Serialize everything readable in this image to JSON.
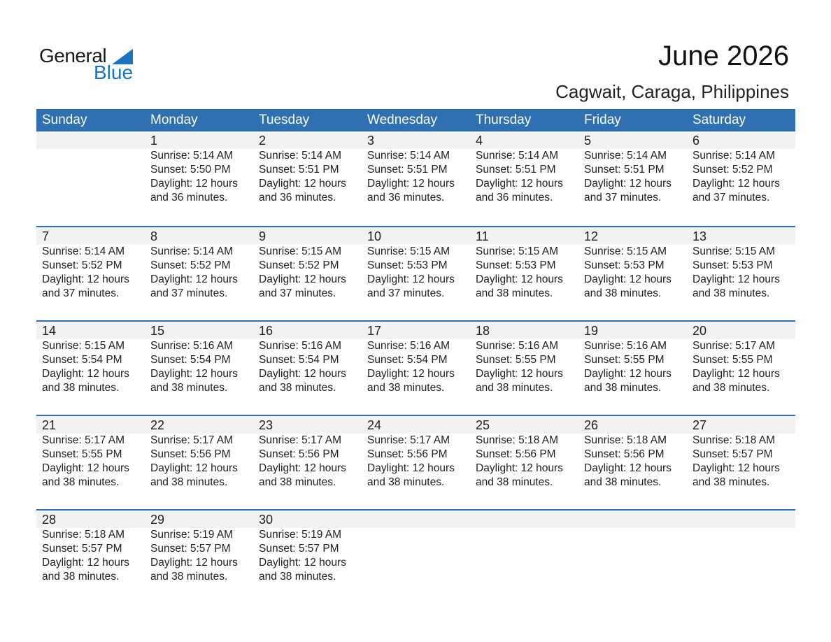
{
  "logo": {
    "word1": "General",
    "word2": "Blue",
    "brand_color": "#1a73c0"
  },
  "header": {
    "title": "June 2026",
    "location": "Cagwait, Caraga, Philippines"
  },
  "weekdays": [
    "Sunday",
    "Monday",
    "Tuesday",
    "Wednesday",
    "Thursday",
    "Friday",
    "Saturday"
  ],
  "accent_color": "#2f70b3",
  "weeks": [
    [
      null,
      {
        "day": "1",
        "sunrise": "Sunrise: 5:14 AM",
        "sunset": "Sunset: 5:50 PM",
        "daylight1": "Daylight: 12 hours",
        "daylight2": "and 36 minutes."
      },
      {
        "day": "2",
        "sunrise": "Sunrise: 5:14 AM",
        "sunset": "Sunset: 5:51 PM",
        "daylight1": "Daylight: 12 hours",
        "daylight2": "and 36 minutes."
      },
      {
        "day": "3",
        "sunrise": "Sunrise: 5:14 AM",
        "sunset": "Sunset: 5:51 PM",
        "daylight1": "Daylight: 12 hours",
        "daylight2": "and 36 minutes."
      },
      {
        "day": "4",
        "sunrise": "Sunrise: 5:14 AM",
        "sunset": "Sunset: 5:51 PM",
        "daylight1": "Daylight: 12 hours",
        "daylight2": "and 36 minutes."
      },
      {
        "day": "5",
        "sunrise": "Sunrise: 5:14 AM",
        "sunset": "Sunset: 5:51 PM",
        "daylight1": "Daylight: 12 hours",
        "daylight2": "and 37 minutes."
      },
      {
        "day": "6",
        "sunrise": "Sunrise: 5:14 AM",
        "sunset": "Sunset: 5:52 PM",
        "daylight1": "Daylight: 12 hours",
        "daylight2": "and 37 minutes."
      }
    ],
    [
      {
        "day": "7",
        "sunrise": "Sunrise: 5:14 AM",
        "sunset": "Sunset: 5:52 PM",
        "daylight1": "Daylight: 12 hours",
        "daylight2": "and 37 minutes."
      },
      {
        "day": "8",
        "sunrise": "Sunrise: 5:14 AM",
        "sunset": "Sunset: 5:52 PM",
        "daylight1": "Daylight: 12 hours",
        "daylight2": "and 37 minutes."
      },
      {
        "day": "9",
        "sunrise": "Sunrise: 5:15 AM",
        "sunset": "Sunset: 5:52 PM",
        "daylight1": "Daylight: 12 hours",
        "daylight2": "and 37 minutes."
      },
      {
        "day": "10",
        "sunrise": "Sunrise: 5:15 AM",
        "sunset": "Sunset: 5:53 PM",
        "daylight1": "Daylight: 12 hours",
        "daylight2": "and 37 minutes."
      },
      {
        "day": "11",
        "sunrise": "Sunrise: 5:15 AM",
        "sunset": "Sunset: 5:53 PM",
        "daylight1": "Daylight: 12 hours",
        "daylight2": "and 38 minutes."
      },
      {
        "day": "12",
        "sunrise": "Sunrise: 5:15 AM",
        "sunset": "Sunset: 5:53 PM",
        "daylight1": "Daylight: 12 hours",
        "daylight2": "and 38 minutes."
      },
      {
        "day": "13",
        "sunrise": "Sunrise: 5:15 AM",
        "sunset": "Sunset: 5:53 PM",
        "daylight1": "Daylight: 12 hours",
        "daylight2": "and 38 minutes."
      }
    ],
    [
      {
        "day": "14",
        "sunrise": "Sunrise: 5:15 AM",
        "sunset": "Sunset: 5:54 PM",
        "daylight1": "Daylight: 12 hours",
        "daylight2": "and 38 minutes."
      },
      {
        "day": "15",
        "sunrise": "Sunrise: 5:16 AM",
        "sunset": "Sunset: 5:54 PM",
        "daylight1": "Daylight: 12 hours",
        "daylight2": "and 38 minutes."
      },
      {
        "day": "16",
        "sunrise": "Sunrise: 5:16 AM",
        "sunset": "Sunset: 5:54 PM",
        "daylight1": "Daylight: 12 hours",
        "daylight2": "and 38 minutes."
      },
      {
        "day": "17",
        "sunrise": "Sunrise: 5:16 AM",
        "sunset": "Sunset: 5:54 PM",
        "daylight1": "Daylight: 12 hours",
        "daylight2": "and 38 minutes."
      },
      {
        "day": "18",
        "sunrise": "Sunrise: 5:16 AM",
        "sunset": "Sunset: 5:55 PM",
        "daylight1": "Daylight: 12 hours",
        "daylight2": "and 38 minutes."
      },
      {
        "day": "19",
        "sunrise": "Sunrise: 5:16 AM",
        "sunset": "Sunset: 5:55 PM",
        "daylight1": "Daylight: 12 hours",
        "daylight2": "and 38 minutes."
      },
      {
        "day": "20",
        "sunrise": "Sunrise: 5:17 AM",
        "sunset": "Sunset: 5:55 PM",
        "daylight1": "Daylight: 12 hours",
        "daylight2": "and 38 minutes."
      }
    ],
    [
      {
        "day": "21",
        "sunrise": "Sunrise: 5:17 AM",
        "sunset": "Sunset: 5:55 PM",
        "daylight1": "Daylight: 12 hours",
        "daylight2": "and 38 minutes."
      },
      {
        "day": "22",
        "sunrise": "Sunrise: 5:17 AM",
        "sunset": "Sunset: 5:56 PM",
        "daylight1": "Daylight: 12 hours",
        "daylight2": "and 38 minutes."
      },
      {
        "day": "23",
        "sunrise": "Sunrise: 5:17 AM",
        "sunset": "Sunset: 5:56 PM",
        "daylight1": "Daylight: 12 hours",
        "daylight2": "and 38 minutes."
      },
      {
        "day": "24",
        "sunrise": "Sunrise: 5:17 AM",
        "sunset": "Sunset: 5:56 PM",
        "daylight1": "Daylight: 12 hours",
        "daylight2": "and 38 minutes."
      },
      {
        "day": "25",
        "sunrise": "Sunrise: 5:18 AM",
        "sunset": "Sunset: 5:56 PM",
        "daylight1": "Daylight: 12 hours",
        "daylight2": "and 38 minutes."
      },
      {
        "day": "26",
        "sunrise": "Sunrise: 5:18 AM",
        "sunset": "Sunset: 5:56 PM",
        "daylight1": "Daylight: 12 hours",
        "daylight2": "and 38 minutes."
      },
      {
        "day": "27",
        "sunrise": "Sunrise: 5:18 AM",
        "sunset": "Sunset: 5:57 PM",
        "daylight1": "Daylight: 12 hours",
        "daylight2": "and 38 minutes."
      }
    ],
    [
      {
        "day": "28",
        "sunrise": "Sunrise: 5:18 AM",
        "sunset": "Sunset: 5:57 PM",
        "daylight1": "Daylight: 12 hours",
        "daylight2": "and 38 minutes."
      },
      {
        "day": "29",
        "sunrise": "Sunrise: 5:19 AM",
        "sunset": "Sunset: 5:57 PM",
        "daylight1": "Daylight: 12 hours",
        "daylight2": "and 38 minutes."
      },
      {
        "day": "30",
        "sunrise": "Sunrise: 5:19 AM",
        "sunset": "Sunset: 5:57 PM",
        "daylight1": "Daylight: 12 hours",
        "daylight2": "and 38 minutes."
      },
      null,
      null,
      null,
      null
    ]
  ]
}
